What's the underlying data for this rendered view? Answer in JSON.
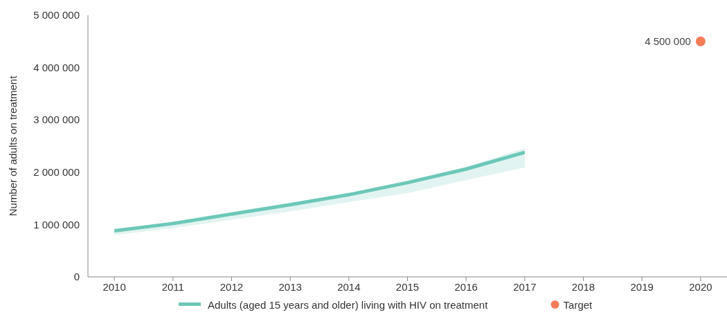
{
  "chart_data": {
    "type": "line",
    "ylabel": "Number of adults on treatment",
    "xlim": [
      2009.55,
      2020.45
    ],
    "xticks": [
      2010,
      2011,
      2012,
      2013,
      2014,
      2015,
      2016,
      2017,
      2018,
      2019,
      2020
    ],
    "ylim": [
      0,
      5000000
    ],
    "yticks": [
      {
        "value": 0,
        "label": "0"
      },
      {
        "value": 1000000,
        "label": "1 000 000"
      },
      {
        "value": 2000000,
        "label": "2 000 000"
      },
      {
        "value": 3000000,
        "label": "3 000 000"
      },
      {
        "value": 4000000,
        "label": "4 000 000"
      },
      {
        "value": 5000000,
        "label": "5 000 000"
      }
    ],
    "series": [
      {
        "name": "Adults (aged 15 years and older) living with HIV on treatment",
        "marker": "none",
        "color": "#6cc8b8",
        "x": [
          2010,
          2011,
          2012,
          2013,
          2014,
          2015,
          2016,
          2017
        ],
        "values": [
          880000,
          1020000,
          1200000,
          1380000,
          1570000,
          1800000,
          2060000,
          2380000
        ],
        "lower": [
          800000,
          930000,
          1090000,
          1250000,
          1430000,
          1600000,
          1850000,
          2090000
        ],
        "upper": [
          900000,
          1040000,
          1230000,
          1410000,
          1600000,
          1840000,
          2100000,
          2460000
        ]
      },
      {
        "name": "Target",
        "type": "scatter",
        "marker": "circle",
        "color": "#f47c57",
        "x": [
          2020
        ],
        "values": [
          4500000
        ],
        "value_labels": [
          "4 500 000"
        ]
      }
    ],
    "grid": false,
    "legend": "bottom",
    "line_style": "solid"
  }
}
